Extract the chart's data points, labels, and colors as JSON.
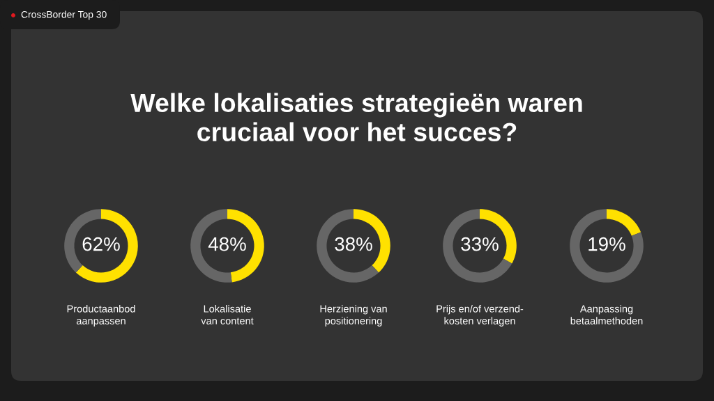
{
  "chart_data": [
    {
      "type": "other",
      "title": "Welke lokalisaties strategieën waren\ncruciaal voor het succes?",
      "annotations": [
        "CrossBorder Top 30"
      ]
    },
    {
      "type": "donut",
      "xlabel": "Productaanbod\naanpassen",
      "categories": [
        null,
        null
      ],
      "values": [
        62,
        38
      ],
      "colors": [
        "#ffe100",
        "#666666"
      ],
      "value_labels": [
        "62%",
        null
      ]
    },
    {
      "type": "donut",
      "xlabel": "Lokalisatie\nvan content",
      "categories": [
        null,
        null
      ],
      "values": [
        48,
        52
      ],
      "colors": [
        "#ffe100",
        "#666666"
      ],
      "value_labels": [
        "48%",
        null
      ]
    },
    {
      "type": "donut",
      "xlabel": "Herziening van\npositionering",
      "categories": [
        null,
        null
      ],
      "values": [
        38,
        62
      ],
      "colors": [
        "#ffe100",
        "#666666"
      ],
      "value_labels": [
        "38%",
        null
      ]
    },
    {
      "type": "donut",
      "xlabel": "Prijs en/of verzend-\nkosten verlagen",
      "categories": [
        null,
        null
      ],
      "values": [
        33,
        67
      ],
      "colors": [
        "#ffe100",
        "#666666"
      ],
      "value_labels": [
        "33%",
        null
      ]
    },
    {
      "type": "donut",
      "xlabel": "Aanpassing\nbetaalmethoden",
      "categories": [
        null,
        null
      ],
      "values": [
        19,
        81
      ],
      "colors": [
        "#ffe100",
        "#666666"
      ],
      "value_labels": [
        "19%",
        null
      ]
    }
  ]
}
